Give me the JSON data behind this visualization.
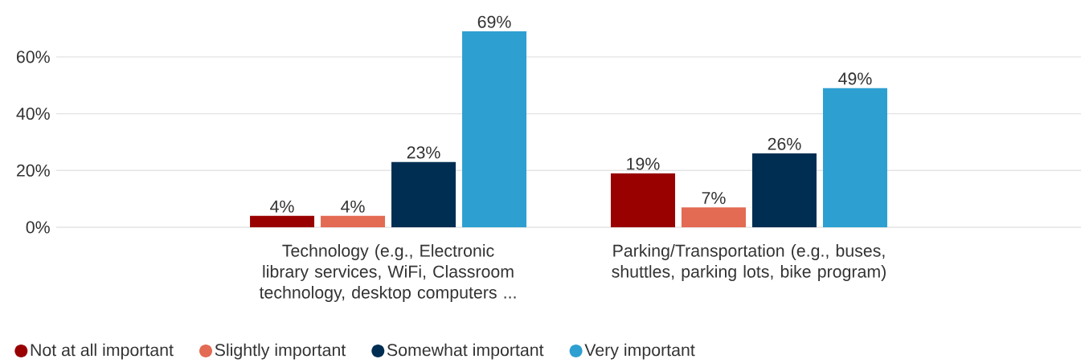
{
  "chart_data": {
    "type": "bar",
    "categories": [
      "Technology (e.g., Electronic library services, WiFi, Classroom technology, desktop computers ...",
      "Parking/Transportation (e.g., buses, shuttles, parking lots, bike program)"
    ],
    "series": [
      {
        "name": "Not at all important",
        "color": "#990000",
        "values": [
          4,
          19
        ],
        "value_labels": [
          "4%",
          "19%"
        ]
      },
      {
        "name": "Slightly important",
        "color": "#e36a53",
        "values": [
          4,
          7
        ],
        "value_labels": [
          "4%",
          "7%"
        ]
      },
      {
        "name": "Somewhat important",
        "color": "#002e52",
        "values": [
          23,
          26
        ],
        "value_labels": [
          "23%",
          "26%"
        ]
      },
      {
        "name": "Very important",
        "color": "#2e9fd1",
        "values": [
          69,
          49
        ],
        "value_labels": [
          "69%",
          "49%"
        ]
      }
    ],
    "ylim": [
      0,
      69
    ],
    "yticks": [
      {
        "value": 0,
        "label": "0%"
      },
      {
        "value": 20,
        "label": "20%"
      },
      {
        "value": 40,
        "label": "40%"
      },
      {
        "value": 60,
        "label": "60%"
      }
    ],
    "grid": "y",
    "legend": "bottom"
  }
}
